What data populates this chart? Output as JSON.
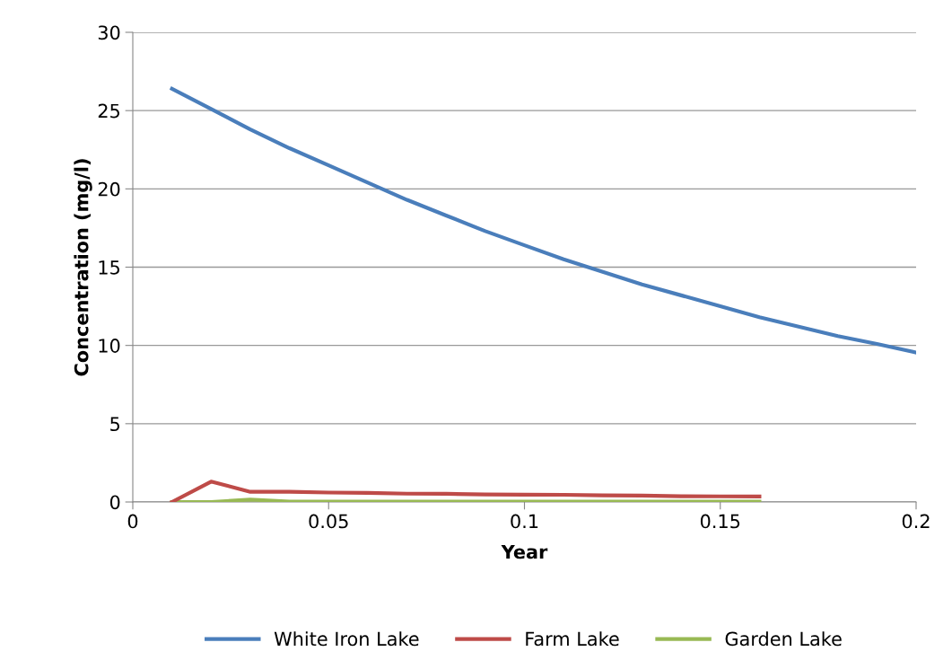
{
  "chart_data": {
    "type": "line",
    "xlabel": "Year",
    "ylabel": "Concentration (mg/l)",
    "xlim": [
      0,
      0.2
    ],
    "xticks": [
      0,
      0.05,
      0.1,
      0.15,
      0.2
    ],
    "ylim": [
      0,
      30
    ],
    "yticks": [
      0,
      5,
      10,
      15,
      20,
      25,
      30
    ],
    "grid": "y",
    "legend": "bottom",
    "marker": "none",
    "line_style": "solid",
    "series": [
      {
        "name": "White Iron Lake",
        "color": "#4a7ebb",
        "x": [
          0.01,
          0.02,
          0.03,
          0.04,
          0.05,
          0.06,
          0.07,
          0.08,
          0.09,
          0.1,
          0.11,
          0.12,
          0.13,
          0.14,
          0.15,
          0.16,
          0.17,
          0.18,
          0.19,
          0.2
        ],
        "values": [
          26.4,
          25.1,
          23.8,
          22.6,
          21.5,
          20.4,
          19.3,
          18.3,
          17.3,
          16.4,
          15.5,
          14.7,
          13.9,
          13.2,
          12.5,
          11.8,
          11.2,
          10.6,
          10.1,
          9.55
        ]
      },
      {
        "name": "Farm Lake",
        "color": "#be4b48",
        "x": [
          0.01,
          0.02,
          0.03,
          0.04,
          0.05,
          0.06,
          0.07,
          0.08,
          0.09,
          0.1,
          0.11,
          0.12,
          0.13,
          0.14,
          0.15,
          0.16
        ],
        "values": [
          0,
          1.3,
          0.65,
          0.65,
          0.6,
          0.58,
          0.53,
          0.52,
          0.48,
          0.47,
          0.46,
          0.42,
          0.41,
          0.37,
          0.36,
          0.35
        ]
      },
      {
        "name": "Garden Lake",
        "color": "#98b954",
        "x": [
          0.01,
          0.02,
          0.03,
          0.04,
          0.05,
          0.06,
          0.07,
          0.08,
          0.09,
          0.1,
          0.11,
          0.12,
          0.13,
          0.14,
          0.15,
          0.16
        ],
        "values": [
          0,
          0,
          0.15,
          0.03,
          0.03,
          0.03,
          0.03,
          0.03,
          0.03,
          0.03,
          0.03,
          0.03,
          0.03,
          0.03,
          0.03,
          0.03
        ]
      }
    ]
  }
}
